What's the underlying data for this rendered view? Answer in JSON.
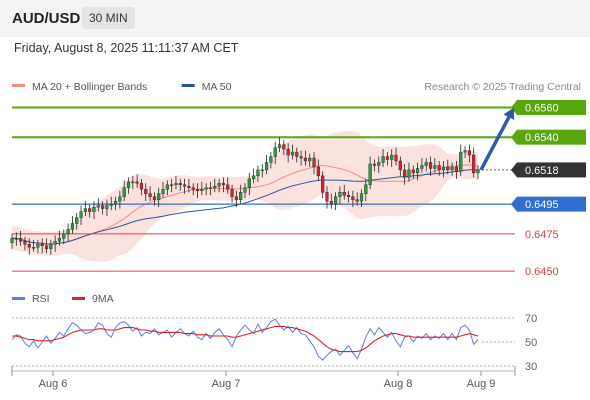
{
  "header": {
    "symbol": "AUD/USD",
    "interval": "30 MIN",
    "datetime": "Friday, August 8, 2025 11:11:37 AM CET"
  },
  "legend": {
    "items": [
      {
        "label": "MA 20 + Bollinger Bands",
        "color": "#f08c84"
      },
      {
        "label": "MA 50",
        "color": "#2f5597"
      }
    ],
    "copyright": "Research © 2025 Trading Central"
  },
  "colors": {
    "up": "#24a043",
    "down": "#d9232b",
    "resistance": "#56a80c",
    "pivot": "#2f6fd0",
    "support": "#d4434a",
    "bollinger_fill": "#fbd8d4",
    "ma20": "#f08c84",
    "ma50": "#2f5597",
    "current_price": "#333333",
    "rsi": "#5b7fd6",
    "rsi_ma": "#d9232b"
  },
  "chart_data": [
    {
      "type": "candlestick",
      "x_labels": [
        "Aug 6",
        "Aug 7",
        "Aug 8",
        "Aug 9"
      ],
      "y_range": [
        0.6444,
        0.6565
      ],
      "current_price": 0.6518,
      "levels": [
        {
          "label": "0.6560",
          "value": 0.656,
          "kind": "resistance"
        },
        {
          "label": "0.6540",
          "value": 0.654,
          "kind": "resistance"
        },
        {
          "label": "0.6495",
          "value": 0.6495,
          "kind": "pivot"
        },
        {
          "label": "0.6475",
          "value": 0.6475,
          "kind": "support"
        },
        {
          "label": "0.6450",
          "value": 0.645,
          "kind": "support"
        }
      ],
      "close_path": [
        0.6472,
        0.6472,
        0.647,
        0.6468,
        0.6466,
        0.6466,
        0.6468,
        0.6467,
        0.6465,
        0.6468,
        0.647,
        0.6472,
        0.6475,
        0.6478,
        0.6482,
        0.6486,
        0.649,
        0.6492,
        0.649,
        0.6493,
        0.6494,
        0.6492,
        0.6494,
        0.6495,
        0.6497,
        0.65,
        0.6506,
        0.651,
        0.651,
        0.6509,
        0.6505,
        0.6502,
        0.65,
        0.6498,
        0.6502,
        0.6505,
        0.6508,
        0.6508,
        0.6509,
        0.6508,
        0.6507,
        0.6506,
        0.6505,
        0.6504,
        0.6505,
        0.6506,
        0.6506,
        0.6507,
        0.6509,
        0.6508,
        0.6505,
        0.65,
        0.6498,
        0.6503,
        0.6506,
        0.6512,
        0.6514,
        0.6518,
        0.6518,
        0.6523,
        0.6527,
        0.6533,
        0.6535,
        0.6532,
        0.6528,
        0.653,
        0.6527,
        0.6526,
        0.6524,
        0.6526,
        0.652,
        0.6514,
        0.6503,
        0.6497,
        0.6495,
        0.65,
        0.6503,
        0.6501,
        0.65,
        0.6498,
        0.6497,
        0.6502,
        0.6508,
        0.6522,
        0.6521,
        0.6523,
        0.6527,
        0.6525,
        0.6528,
        0.6524,
        0.6518,
        0.6513,
        0.6518,
        0.6516,
        0.6519,
        0.6521,
        0.6523,
        0.6519,
        0.6521,
        0.6518,
        0.652,
        0.6518,
        0.652,
        0.6517,
        0.653,
        0.6531,
        0.6528,
        0.6516,
        0.6518
      ],
      "projection": {
        "from": 0.6518,
        "to": 0.656
      }
    },
    {
      "type": "line",
      "legend": [
        {
          "label": "RSI",
          "color": "#5b7fd6"
        },
        {
          "label": "9MA",
          "color": "#d9232b"
        }
      ],
      "y_range": [
        25,
        75
      ],
      "y_ticks": [
        {
          "label": "70",
          "value": 70
        },
        {
          "label": "50",
          "value": 50
        },
        {
          "label": "30",
          "value": 30
        }
      ],
      "rsi_path": [
        52,
        56,
        55,
        49,
        46,
        51,
        45,
        50,
        55,
        49,
        53,
        58,
        55,
        61,
        66,
        64,
        60,
        57,
        58,
        60,
        66,
        64,
        57,
        54,
        62,
        66,
        67,
        64,
        59,
        62,
        55,
        58,
        57,
        61,
        56,
        58,
        60,
        54,
        58,
        61,
        57,
        55,
        59,
        54,
        52,
        57,
        53,
        58,
        61,
        56,
        52,
        46,
        55,
        60,
        64,
        60,
        57,
        65,
        58,
        62,
        67,
        69,
        64,
        60,
        63,
        58,
        62,
        57,
        56,
        51,
        46,
        38,
        35,
        39,
        42,
        44,
        39,
        43,
        47,
        41,
        36,
        44,
        54,
        61,
        56,
        62,
        58,
        54,
        58,
        51,
        46,
        54,
        55,
        50,
        55,
        53,
        57,
        52,
        55,
        53,
        57,
        52,
        57,
        52,
        62,
        64,
        60,
        48,
        52
      ],
      "ma_path": [
        55,
        55,
        54,
        53,
        52,
        52,
        51,
        51,
        51,
        51,
        52,
        53,
        54,
        56,
        58,
        59,
        60,
        60,
        60,
        60,
        61,
        61,
        60,
        60,
        60,
        61,
        62,
        62,
        62,
        61,
        60,
        60,
        59,
        59,
        58,
        58,
        58,
        58,
        58,
        58,
        57,
        57,
        57,
        56,
        56,
        56,
        55,
        55,
        55,
        55,
        55,
        54,
        54,
        55,
        56,
        57,
        58,
        59,
        60,
        61,
        62,
        63,
        63,
        63,
        62,
        62,
        61,
        60,
        59,
        57,
        55,
        52,
        49,
        46,
        44,
        43,
        42,
        42,
        42,
        42,
        42,
        43,
        45,
        48,
        51,
        53,
        55,
        56,
        57,
        57,
        56,
        55,
        55,
        54,
        54,
        54,
        54,
        54,
        54,
        54,
        54,
        54,
        54,
        54,
        55,
        56,
        57,
        56,
        55
      ]
    }
  ]
}
